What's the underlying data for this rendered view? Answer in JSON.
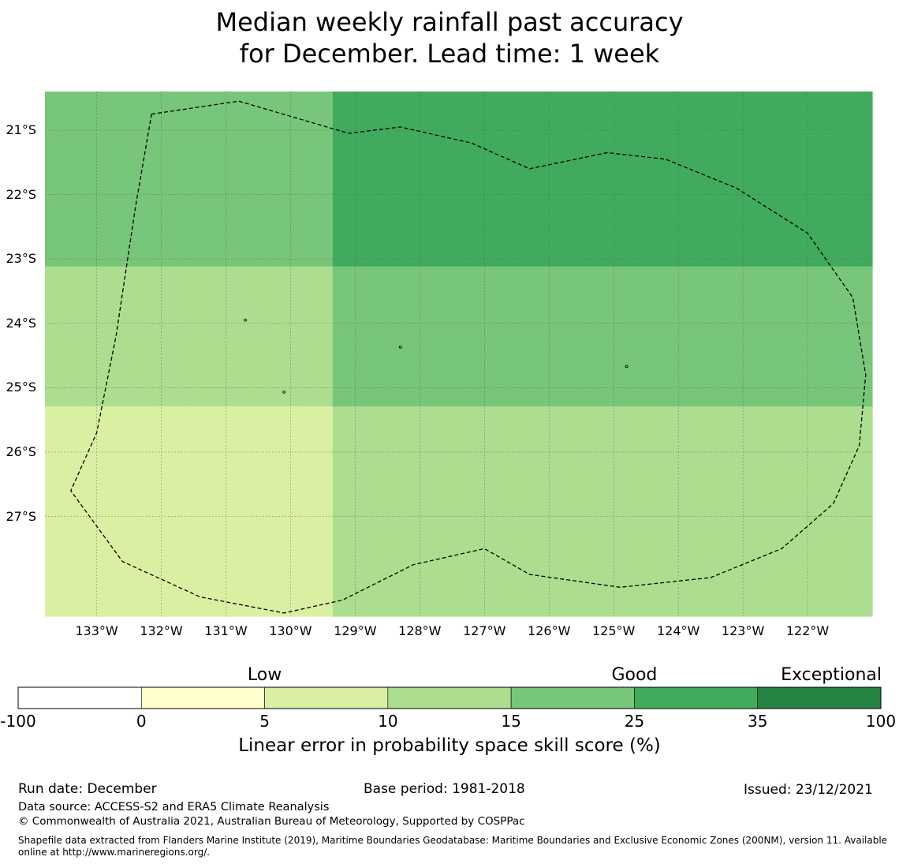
{
  "title_line1": "Median weekly rainfall past accuracy",
  "title_line2": "for December. Lead time: 1 week",
  "map": {
    "lon_min": -133.8,
    "lon_max": -121.0,
    "lat_max": -20.4,
    "lat_min": -28.55,
    "lat_labels": [
      {
        "value": -21,
        "text": "21°S"
      },
      {
        "value": -22,
        "text": "22°S"
      },
      {
        "value": -23,
        "text": "23°S"
      },
      {
        "value": -24,
        "text": "24°S"
      },
      {
        "value": -25,
        "text": "25°S"
      },
      {
        "value": -26,
        "text": "26°S"
      },
      {
        "value": -27,
        "text": "27°S"
      }
    ],
    "lon_labels": [
      {
        "value": -133,
        "text": "133°W"
      },
      {
        "value": -132,
        "text": "132°W"
      },
      {
        "value": -131,
        "text": "131°W"
      },
      {
        "value": -130,
        "text": "130°W"
      },
      {
        "value": -129,
        "text": "129°W"
      },
      {
        "value": -128,
        "text": "128°W"
      },
      {
        "value": -127,
        "text": "127°W"
      },
      {
        "value": -126,
        "text": "126°W"
      },
      {
        "value": -125,
        "text": "125°W"
      },
      {
        "value": -124,
        "text": "124°W"
      },
      {
        "value": -123,
        "text": "123°W"
      },
      {
        "value": -122,
        "text": "122°W"
      }
    ],
    "grid_cols": 23,
    "grid_rows": 15,
    "class_colors": [
      "#ffffff",
      "#ffffcc",
      "#d9f0a3",
      "#addd8e",
      "#78c679",
      "#41ab5d",
      "#238443"
    ],
    "skill_class_grid": [
      "44444444555555555555555",
      "44444444555555555555555",
      "44444444555555555555555",
      "44444444555555555555555",
      "44444444555555555555555",
      "33333333444444444444444",
      "33333333444444444444444",
      "33333333444444444444444",
      "33333333444444444444444",
      "22222222333333333333333",
      "22222222333333333333333",
      "22222222333333333333333",
      "22222222333333333333333",
      "22222222333333333333333",
      "22222222333333333333333"
    ],
    "eez_boundary": [
      [
        -132.15,
        -20.75
      ],
      [
        -130.8,
        -20.55
      ],
      [
        -129.1,
        -21.05
      ],
      [
        -128.3,
        -20.95
      ],
      [
        -127.2,
        -21.2
      ],
      [
        -126.3,
        -21.6
      ],
      [
        -125.1,
        -21.35
      ],
      [
        -124.2,
        -21.45
      ],
      [
        -123.1,
        -21.9
      ],
      [
        -122.0,
        -22.6
      ],
      [
        -121.3,
        -23.6
      ],
      [
        -121.1,
        -24.8
      ],
      [
        -121.2,
        -25.9
      ],
      [
        -121.6,
        -26.8
      ],
      [
        -122.4,
        -27.5
      ],
      [
        -123.5,
        -27.95
      ],
      [
        -124.9,
        -28.1
      ],
      [
        -126.3,
        -27.9
      ],
      [
        -127.0,
        -27.5
      ],
      [
        -128.1,
        -27.75
      ],
      [
        -129.2,
        -28.3
      ],
      [
        -130.1,
        -28.5
      ],
      [
        -131.4,
        -28.25
      ],
      [
        -132.6,
        -27.7
      ],
      [
        -133.4,
        -26.6
      ],
      [
        -133.0,
        -25.7
      ],
      [
        -132.7,
        -24.2
      ],
      [
        -132.4,
        -22.2
      ],
      [
        -132.15,
        -20.75
      ]
    ],
    "islands": [
      [
        -130.7,
        -23.95
      ],
      [
        -128.3,
        -24.37
      ],
      [
        -130.1,
        -25.07
      ],
      [
        -124.8,
        -24.67
      ]
    ]
  },
  "colorbar": {
    "category_labels": [
      {
        "text": "Low",
        "center_value": 5
      },
      {
        "text": "Good",
        "center_value": 25
      },
      {
        "text": "Exceptional",
        "center_value": 100
      }
    ],
    "tick_labels": [
      "-100",
      "0",
      "5",
      "10",
      "15",
      "25",
      "35",
      "100"
    ],
    "colors": [
      "#ffffff",
      "#ffffcc",
      "#d9f0a3",
      "#addd8e",
      "#78c679",
      "#41ab5d",
      "#238443"
    ],
    "title": "Linear error in probability space skill score (%)"
  },
  "footer": {
    "run_date": "Run date: December",
    "base_period": "Base period: 1981-2018",
    "issued": "Issued: 23/12/2021",
    "data_source": "Data source: ACCESS-S2 and ERA5 Climate Reanalysis",
    "copyright": "© Commonwealth of Australia 2021, Australian Bureau of Meteorology, Supported by COSPPac",
    "shapefile": "Shapefile data extracted from Flanders Marine Institute (2019), Maritime Boundaries Geodatabase: Maritime Boundaries and Exclusive Economic Zones (200NM), version 11. Available online at http://www.marineregions.org/."
  }
}
